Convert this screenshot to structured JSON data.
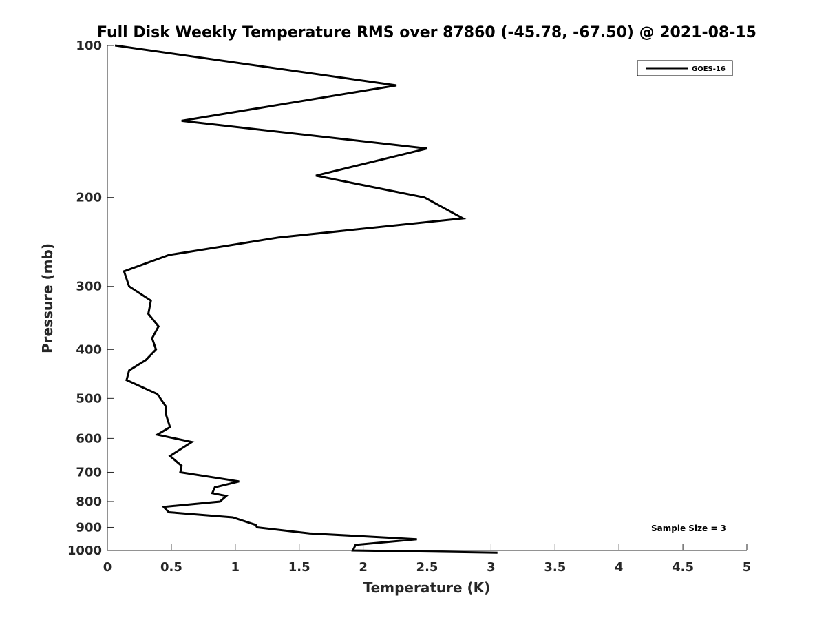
{
  "chart_data": {
    "type": "line",
    "title": "Full Disk Weekly Temperature RMS over 87860 (-45.78, -67.50) @ 2021-08-15",
    "xlabel": "Temperature (K)",
    "ylabel": "Pressure (mb)",
    "xlim": [
      0,
      5
    ],
    "ylim": [
      100,
      1000
    ],
    "y_scale": "log",
    "y_reversed": true,
    "x_ticks": [
      "0",
      "0.5",
      "1",
      "1.5",
      "2",
      "2.5",
      "3",
      "3.5",
      "4",
      "4.5",
      "5"
    ],
    "y_ticks": [
      "100",
      "200",
      "300",
      "400",
      "500",
      "600",
      "700",
      "800",
      "900",
      "1000"
    ],
    "grid": false,
    "legend_position": "top-right",
    "annotation": "Sample Size = 3",
    "series": [
      {
        "name": "GOES-16",
        "color": "#000000",
        "x": [
          0.06,
          2.26,
          0.58,
          2.5,
          1.63,
          2.48,
          2.78,
          1.34,
          0.48,
          0.13,
          0.17,
          0.34,
          0.32,
          0.4,
          0.35,
          0.38,
          0.3,
          0.17,
          0.15,
          0.39,
          0.46,
          0.46,
          0.49,
          0.39,
          0.66,
          0.49,
          0.58,
          0.57,
          1.03,
          0.84,
          0.82,
          0.93,
          0.88,
          0.44,
          0.48,
          0.98,
          1.16,
          1.17,
          1.58,
          2.42,
          1.94,
          1.92,
          3.05
        ],
        "y": [
          100,
          120,
          141,
          160,
          181,
          200,
          220,
          240,
          260,
          280,
          300,
          320,
          340,
          360,
          380,
          400,
          420,
          440,
          460,
          490,
          520,
          540,
          570,
          590,
          610,
          650,
          680,
          700,
          730,
          750,
          770,
          780,
          800,
          820,
          840,
          860,
          890,
          900,
          925,
          950,
          975,
          1000,
          1010
        ]
      }
    ]
  }
}
